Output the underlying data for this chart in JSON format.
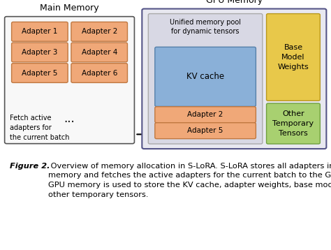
{
  "bg_color": "#ffffff",
  "main_memory_title": "Main Memory",
  "gpu_memory_title": "GPU Memory",
  "adapter_color": "#f0a878",
  "adapter_border": "#c07840",
  "main_box_color": "#f8f8f8",
  "main_box_border": "#555555",
  "gpu_outer_box_color": "#e8e8f0",
  "gpu_outer_box_border": "#555588",
  "unified_pool_color": "#d8d8e4",
  "unified_pool_border": "#aaaaaa",
  "kv_cache_color": "#8ab0d8",
  "kv_cache_border": "#5580aa",
  "base_model_color": "#e8c84a",
  "base_model_border": "#b89820",
  "other_temp_color": "#a8d070",
  "other_temp_border": "#70a040",
  "adapters_in_main": [
    [
      "Adapter 1",
      "Adapter 2"
    ],
    [
      "Adapter 3",
      "Adapter 4"
    ],
    [
      "Adapter 5",
      "Adapter 6"
    ]
  ],
  "adapters_in_gpu": [
    "Adapter 2",
    "Adapter 5"
  ],
  "fetch_text": "Fetch active\nadapters for\nthe current batch",
  "unified_pool_text": "Unified memory pool\nfor dynamic tensors",
  "kv_cache_text": "KV cache",
  "base_model_text": "Base\nModel\nWeights",
  "other_temp_text": "Other\nTemporary\nTensors",
  "caption_italic": "Figure 2.",
  "caption_normal": " Overview of memory allocation in S-LoRA. S-LoRA stores all adapters in the main memory and fetches the active adapters for the current batch to the GPU memory.  The GPU memory is used to store the KV cache, adapter weights, base model weights, and other temporary tensors.",
  "figure_width": 4.74,
  "figure_height": 3.58
}
